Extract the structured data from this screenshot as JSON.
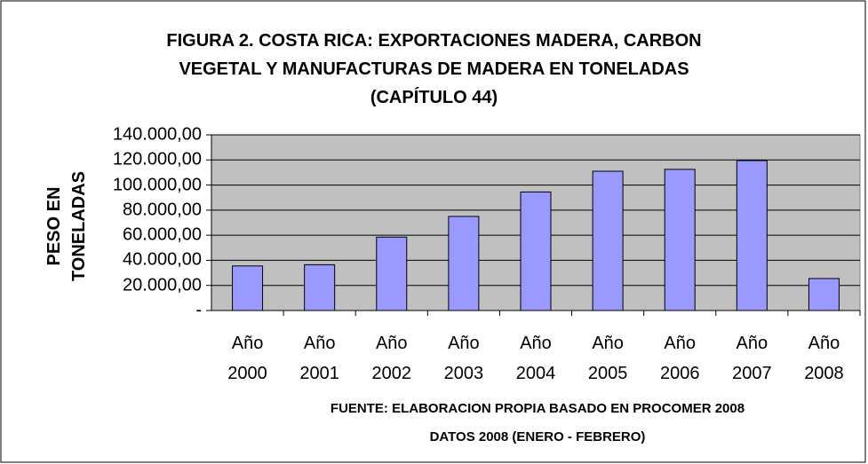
{
  "chart_data": {
    "type": "bar",
    "title": "FIGURA 2. COSTA RICA: EXPORTACIONES MADERA, CARBON\nVEGETAL Y MANUFACTURAS DE MADERA EN TONELADAS\n(CAPÍTULO 44)",
    "ylabel": "PESO EN\nTONELADAS",
    "categories": [
      "Año\n2000",
      "Año\n2001",
      "Año\n2002",
      "Año\n2003",
      "Año\n2004",
      "Año\n2005",
      "Año\n2006",
      "Año\n2007",
      "Año\n2008"
    ],
    "values": [
      35500,
      36500,
      58500,
      75000,
      94500,
      111000,
      112500,
      119500,
      25500
    ],
    "color": "#9999ff",
    "ylim": [
      0,
      140000
    ],
    "yticks": [
      {
        "value": 0,
        "label": "-"
      },
      {
        "value": 20000,
        "label": "20.000,00"
      },
      {
        "value": 40000,
        "label": "40.000,00"
      },
      {
        "value": 60000,
        "label": "60.000,00"
      },
      {
        "value": 80000,
        "label": "80.000,00"
      },
      {
        "value": 100000,
        "label": "100.000,00"
      },
      {
        "value": 120000,
        "label": "120.000,00"
      },
      {
        "value": 140000,
        "label": "140.000,00"
      }
    ],
    "grid": true,
    "source": "FUENTE: ELABORACION PROPIA BASADO EN PROCOMER 2008",
    "note": "DATOS 2008 (ENERO - FEBRERO)"
  }
}
